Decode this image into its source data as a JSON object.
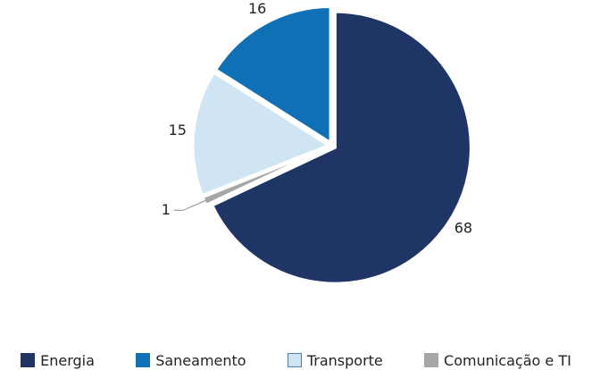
{
  "chart_data": {
    "type": "pie",
    "categories": [
      "Energia",
      "Comunicação e TI",
      "Transporte",
      "Saneamento"
    ],
    "values": [
      68,
      1,
      15,
      16
    ],
    "colors": [
      "#1f3566",
      "#a6a6a6",
      "#cfe5f3",
      "#1070b5"
    ],
    "legend_order": [
      0,
      3,
      2,
      1
    ],
    "legend": "bottom"
  }
}
